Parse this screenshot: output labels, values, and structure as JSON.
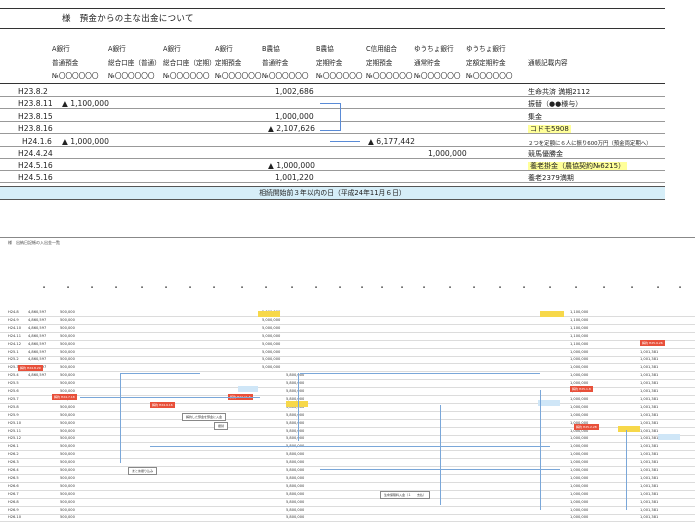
{
  "top": {
    "title": "様　預金からの主な出金について",
    "columns": [
      {
        "bank": "A銀行",
        "type": "普通預金",
        "acct": "№〇〇〇〇〇〇"
      },
      {
        "bank": "A銀行",
        "type": "総合口座（普通）",
        "acct": "№〇〇〇〇〇〇"
      },
      {
        "bank": "A銀行",
        "type": "総合口座（定期）",
        "acct": "№〇〇〇〇〇〇"
      },
      {
        "bank": "A銀行",
        "type": "定期預金",
        "acct": "№〇〇〇〇〇〇"
      },
      {
        "bank": "B農協",
        "type": "普通貯金",
        "acct": "№〇〇〇〇〇〇"
      },
      {
        "bank": "B農協",
        "type": "定期貯金",
        "acct": "№〇〇〇〇〇〇"
      },
      {
        "bank": "C信用組合",
        "type": "定期預金",
        "acct": "№〇〇〇〇〇〇"
      },
      {
        "bank": "ゆうちょ銀行",
        "type": "通常貯金",
        "acct": "№〇〇〇〇〇〇"
      },
      {
        "bank": "ゆうちょ銀行",
        "type": "定額定期貯金",
        "acct": "№〇〇〇〇〇〇"
      },
      {
        "bank": "",
        "type": "通帳記載内容",
        "acct": ""
      }
    ],
    "rows": [
      {
        "date": "H23.8.2",
        "amount": "1,002,686",
        "note": "生命共済 満期2112"
      },
      {
        "date": "H23.8.11",
        "amount": "▲ 1,100,000",
        "note": "振替（●●様与）"
      },
      {
        "date": "H23.8.15",
        "amount": "1,000,000",
        "note": "集金"
      },
      {
        "date": "H23.8.16",
        "amount": "▲ 2,107,626",
        "note": "コドモ5908"
      },
      {
        "date": "H24.1.6",
        "amount": "▲ 1,000,000",
        "amount2": "▲ 6,177,442",
        "note": "２つを定額に６人に振り600万円（預金両定期へ）"
      },
      {
        "date": "H24.4.24",
        "amount": "1,000,000",
        "note": "競馬優勝金"
      },
      {
        "date": "H24.5.16",
        "amount": "▲ 1,000,000",
        "note": "養老掛金（農協契約№6215）"
      },
      {
        "date": "H24.5.16",
        "amount": "1,001,220",
        "note": "養老2379満期"
      }
    ],
    "footer": "相続開始前３年以内の日（平成24年11月６日）"
  },
  "bottom": {
    "title": "様　出納日記帳の入出金一覧",
    "dates": [
      "H24.8",
      "H24.9",
      "H24.10",
      "H24.11",
      "H24.12",
      "H25.1",
      "H25.2",
      "H25.3",
      "H25.4",
      "H25.5",
      "H25.6",
      "H25.7",
      "H25.8",
      "H25.9",
      "H25.10",
      "H25.11",
      "H25.12",
      "H26.1",
      "H26.2",
      "H26.3",
      "H26.4",
      "H26.5",
      "H26.6",
      "H26.7",
      "H26.8",
      "H26.9",
      "H26.10"
    ],
    "col_a": "4,860,597",
    "col_b": "500,000",
    "col_mid": "5,000,000",
    "col_mid2": "5,800,000",
    "col_right": "1,100,000",
    "col_right2": "1,000,000",
    "col_far": "1,001,381",
    "notes": [
      "解約した預金を預金に入金",
      "振替",
      "まとめ振り込み",
      "生命保険料入金（１　　支払）"
    ],
    "red_labels": [
      "解約 H24.8.29",
      "解約 H24.7.18",
      "解約 H24.9.16",
      "解約 H24.11.6",
      "解約 H25.1.8",
      "解約 H25.2.28",
      "解約 H25.9.26"
    ]
  }
}
